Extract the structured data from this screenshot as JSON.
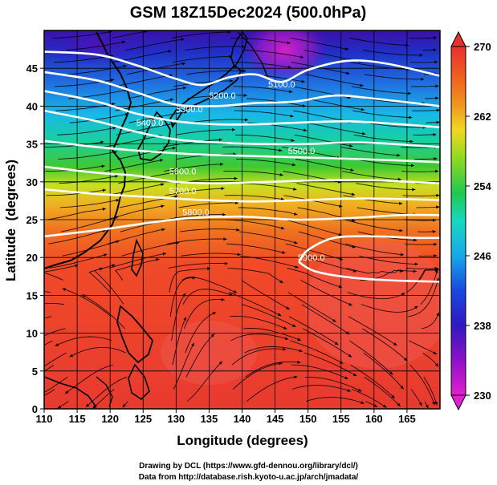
{
  "chart_data": {
    "type": "heatmap",
    "title": "GSM 18Z15Dec2024 (500.0hPa)",
    "xlabel": "Longitude (degrees)",
    "ylabel": "Latitude  (degrees)",
    "xlim": [
      110,
      170
    ],
    "ylim": [
      0,
      50
    ],
    "x_ticks": [
      110,
      115,
      120,
      125,
      130,
      135,
      140,
      145,
      150,
      155,
      160,
      165
    ],
    "y_ticks": [
      0,
      5,
      10,
      15,
      20,
      25,
      30,
      35,
      40,
      45
    ],
    "grid": true,
    "colorbar": {
      "ticks": [
        230,
        238,
        246,
        254,
        262,
        270
      ],
      "colors": [
        "#d81ad8",
        "#7a12c8",
        "#1a22c8",
        "#1a8ce8",
        "#10d8e0",
        "#18d088",
        "#30c030",
        "#a8e020",
        "#f0e020",
        "#f0a020",
        "#f06020",
        "#e83030"
      ]
    },
    "contours": [
      {
        "label": "5100.0",
        "points": [
          [
            110,
            47.2
          ],
          [
            118,
            46.8
          ],
          [
            124,
            45.4
          ],
          [
            130,
            43.6
          ],
          [
            134,
            42.8
          ],
          [
            138,
            43.8
          ],
          [
            142,
            44.2
          ],
          [
            146,
            43.2
          ],
          [
            150,
            44.8
          ],
          [
            156,
            46.0
          ],
          [
            162,
            45.6
          ],
          [
            170,
            44.0
          ]
        ]
      },
      {
        "label": "5200.0",
        "points": [
          [
            110,
            44.5
          ],
          [
            118,
            43.4
          ],
          [
            124,
            41.8
          ],
          [
            130,
            40.2
          ],
          [
            136,
            40.0
          ],
          [
            142,
            40.4
          ],
          [
            148,
            40.6
          ],
          [
            154,
            41.4
          ],
          [
            160,
            41.0
          ],
          [
            170,
            40.0
          ]
        ]
      },
      {
        "label": "5300.0",
        "points": [
          [
            110,
            42.0
          ],
          [
            118,
            40.6
          ],
          [
            124,
            39.0
          ],
          [
            130,
            38.0
          ],
          [
            136,
            37.6
          ],
          [
            142,
            37.6
          ],
          [
            148,
            37.8
          ],
          [
            156,
            38.0
          ],
          [
            164,
            37.6
          ],
          [
            170,
            37.2
          ]
        ]
      },
      {
        "label": "5400.0",
        "points": [
          [
            110,
            39.4
          ],
          [
            118,
            38.0
          ],
          [
            124,
            36.6
          ],
          [
            130,
            35.6
          ],
          [
            136,
            35.2
          ],
          [
            142,
            35.0
          ],
          [
            150,
            35.0
          ],
          [
            158,
            35.2
          ],
          [
            170,
            34.6
          ]
        ]
      },
      {
        "label": "5500.0",
        "points": [
          [
            110,
            35.4
          ],
          [
            118,
            34.6
          ],
          [
            126,
            34.0
          ],
          [
            134,
            33.6
          ],
          [
            142,
            33.4
          ],
          [
            150,
            33.2
          ],
          [
            158,
            33.0
          ],
          [
            170,
            32.6
          ]
        ]
      },
      {
        "label": "5600.0",
        "points": [
          [
            110,
            32.0
          ],
          [
            118,
            31.2
          ],
          [
            124,
            30.8
          ],
          [
            130,
            30.0
          ],
          [
            136,
            29.8
          ],
          [
            144,
            30.0
          ],
          [
            152,
            30.2
          ],
          [
            160,
            30.2
          ],
          [
            170,
            29.8
          ]
        ]
      },
      {
        "label": "5700.0",
        "points": [
          [
            110,
            29.0
          ],
          [
            118,
            28.4
          ],
          [
            126,
            28.0
          ],
          [
            134,
            27.6
          ],
          [
            142,
            27.4
          ],
          [
            150,
            27.6
          ],
          [
            158,
            27.8
          ],
          [
            170,
            27.6
          ]
        ]
      },
      {
        "label": "5800.0",
        "points": [
          [
            110,
            22.8
          ],
          [
            118,
            23.6
          ],
          [
            126,
            24.6
          ],
          [
            132,
            25.2
          ],
          [
            140,
            25.4
          ],
          [
            148,
            25.0
          ],
          [
            156,
            25.2
          ],
          [
            164,
            25.6
          ],
          [
            170,
            25.6
          ]
        ]
      },
      {
        "label": "5900.0",
        "points": [
          [
            148.6,
            19.4
          ],
          [
            150,
            21.0
          ],
          [
            154,
            22.6
          ],
          [
            160,
            22.8
          ],
          [
            166,
            22.6
          ],
          [
            170,
            22.6
          ]
        ]
      },
      {
        "label": "",
        "points": [
          [
            148.6,
            19.4
          ],
          [
            151,
            18.2
          ],
          [
            156,
            17.4
          ],
          [
            162,
            17.0
          ],
          [
            170,
            16.8
          ]
        ]
      }
    ],
    "contour_labels": [
      {
        "text": "5100.0",
        "at": [
          146,
          42.5
        ]
      },
      {
        "text": "5200.0",
        "at": [
          137,
          41.0
        ]
      },
      {
        "text": "5300.0",
        "at": [
          132,
          39.2
        ]
      },
      {
        "text": "5400.0",
        "at": [
          126,
          37.4
        ]
      },
      {
        "text": "5500.0",
        "at": [
          149,
          33.7
        ]
      },
      {
        "text": "5600.0",
        "at": [
          131,
          31.0
        ]
      },
      {
        "text": "5700.0",
        "at": [
          131,
          28.4
        ]
      },
      {
        "text": "5800.0",
        "at": [
          133,
          25.6
        ]
      },
      {
        "text": "5900.0",
        "at": [
          150.5,
          19.6
        ]
      }
    ]
  },
  "footer": {
    "line1": "Drawing by DCL (https://www.gfd-dennou.org/library/dcl/)",
    "line2": "Data from http://database.rish.kyoto-u.ac.jp/arch/jmadata/"
  }
}
